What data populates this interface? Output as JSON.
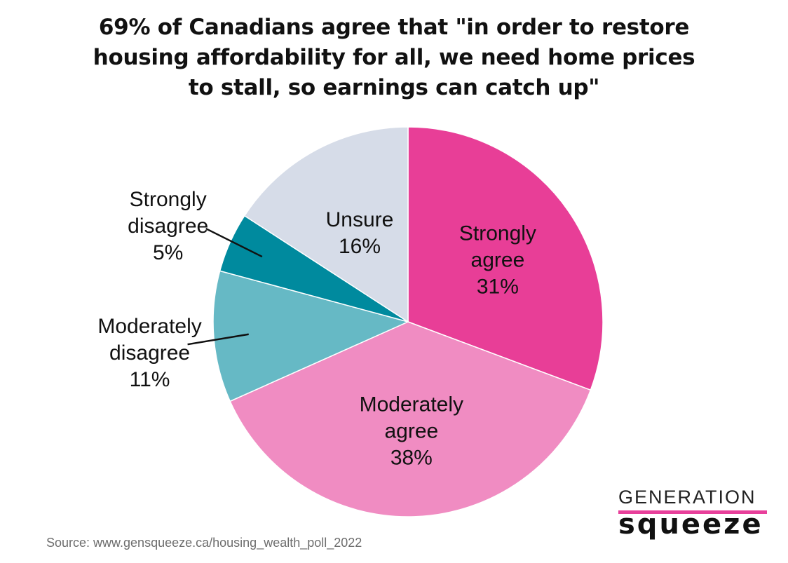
{
  "chart_data": {
    "type": "pie",
    "title": "69% of Canadians agree that \"in order to restore\nhousing affordability for all, we need home prices\nto stall, so earnings can catch up\"",
    "slices": [
      {
        "name": "Strongly agree",
        "value": 31,
        "label_lines": [
          "Strongly",
          "agree",
          "31%"
        ],
        "color": "#e83e97"
      },
      {
        "name": "Moderately agree",
        "value": 38,
        "label_lines": [
          "Moderately",
          "agree",
          "38%"
        ],
        "color": "#f08cc2"
      },
      {
        "name": "Moderately disagree",
        "value": 11,
        "label_lines": [
          "Moderately",
          "disagree",
          "11%"
        ],
        "color": "#66b9c5"
      },
      {
        "name": "Strongly disagree",
        "value": 5,
        "label_lines": [
          "Strongly",
          "disagree",
          "5%"
        ],
        "color": "#008a9e"
      },
      {
        "name": "Unsure",
        "value": 16,
        "label_lines": [
          "Unsure",
          "16%"
        ],
        "color": "#d6dce8"
      }
    ],
    "source": "Source: www.gensqueeze.ca/housing_wealth_poll_2022"
  },
  "logo": {
    "top": "GENERATION",
    "bottom": "squeeze",
    "accent_color": "#e8409b"
  }
}
